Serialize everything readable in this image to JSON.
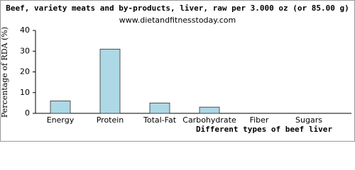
{
  "chart_data": {
    "type": "bar",
    "title": "Beef, variety meats and by-products, liver, raw per 3.000 oz (or 85.00 g)",
    "subtitle": "www.dietandfitnesstoday.com",
    "x_label": "Different types of beef liver",
    "y_label": "Percentage of RDA (%)",
    "categories": [
      "Energy",
      "Protein",
      "Total-Fat",
      "Carbohydrate",
      "Fiber",
      "Sugars"
    ],
    "values": [
      6,
      31,
      5,
      3,
      0,
      0
    ],
    "color": "#add8e6",
    "ylim": [
      0,
      40
    ],
    "yticks": [
      0,
      10,
      20,
      30,
      40
    ],
    "grid": false
  }
}
